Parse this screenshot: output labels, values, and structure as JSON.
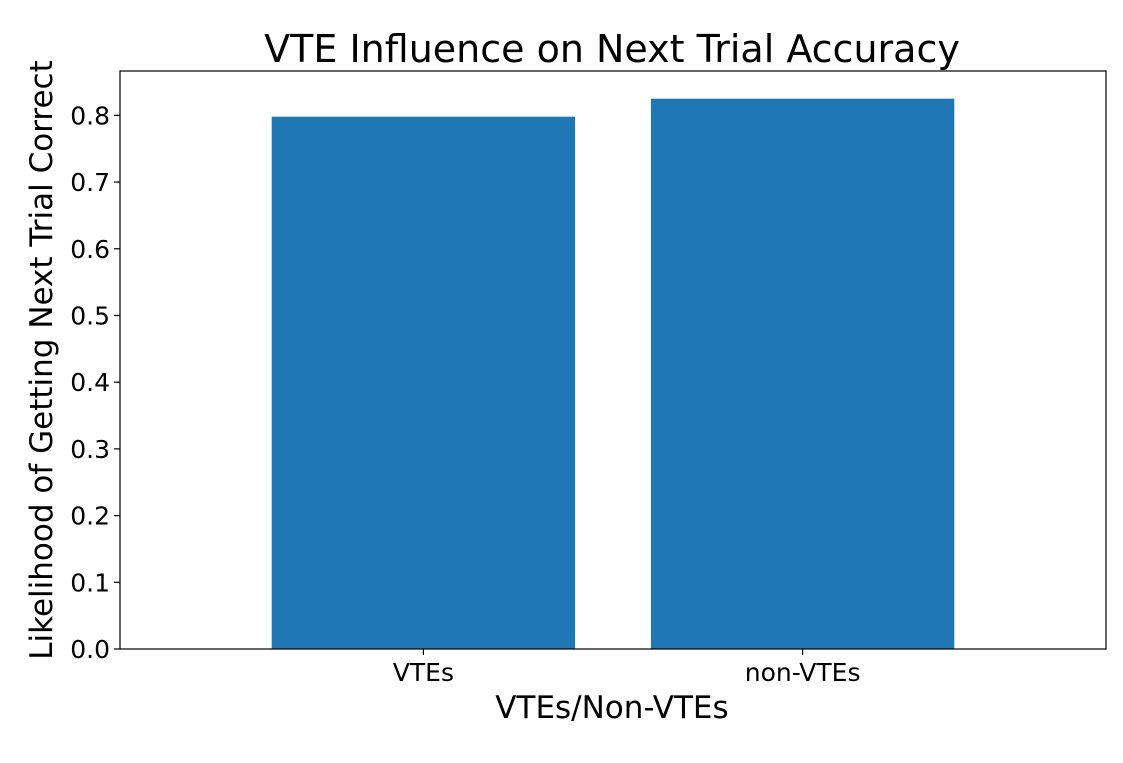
{
  "chart_data": {
    "type": "bar",
    "title": "VTE Influence on Next Trial Accuracy",
    "xlabel": "VTEs/Non-VTEs",
    "ylabel": "Likelihood of Getting Next Trial Correct",
    "categories": [
      "VTEs",
      "non-VTEs"
    ],
    "values": [
      0.798,
      0.825
    ],
    "ylim": [
      0,
      0.8665
    ],
    "yticks": [
      0.0,
      0.1,
      0.2,
      0.3,
      0.4,
      0.5,
      0.6,
      0.7,
      0.8
    ],
    "ytick_labels": [
      "0.0",
      "0.1",
      "0.2",
      "0.3",
      "0.4",
      "0.5",
      "0.6",
      "0.7",
      "0.8"
    ],
    "bar_color": "#1f77b4",
    "grid": false,
    "legend": "none"
  }
}
